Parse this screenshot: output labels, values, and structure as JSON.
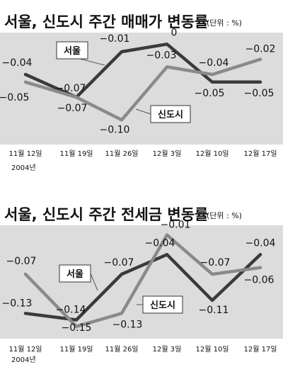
{
  "chart_data": [
    {
      "type": "line",
      "title": "서울, 신도시 주간 매매가 변동률",
      "unit": "(단위 : %)",
      "categories": [
        "11월 12일",
        "11월 19일",
        "11월 26일",
        "12월 3일",
        "12월 10일",
        "12월 17일"
      ],
      "year_note": "2004년",
      "ylim": [
        -0.11,
        0.005
      ],
      "series": [
        {
          "name": "서울",
          "color": "#3a3a3a",
          "values": [
            -0.04,
            -0.07,
            -0.01,
            0.0,
            -0.05,
            -0.05
          ],
          "labels": [
            "−0.04",
            "−0.07",
            "−0.01",
            "0",
            "−0.05",
            "−0.05"
          ]
        },
        {
          "name": "신도시",
          "color": "#8a8a8a",
          "values": [
            -0.05,
            -0.07,
            -0.1,
            -0.03,
            -0.04,
            -0.02
          ],
          "labels": [
            "−0.05",
            "−0.07",
            "−0.10",
            "−0.03",
            "−0.04",
            "−0.02"
          ]
        }
      ]
    },
    {
      "type": "line",
      "title": "서울, 신도시 주간 전세금 변동률",
      "unit": "(단위 : %)",
      "categories": [
        "11월 12일",
        "11월 19일",
        "11월 26일",
        "12월 3일",
        "12월 10일",
        "12월 17일"
      ],
      "year_note": "2004년",
      "ylim": [
        -0.16,
        -0.005
      ],
      "series": [
        {
          "name": "서울",
          "color": "#3a3a3a",
          "values": [
            -0.13,
            -0.14,
            -0.07,
            -0.04,
            -0.11,
            -0.04
          ],
          "labels": [
            "−0.13",
            "−0.14",
            "−0.07",
            "−0.04",
            "−0.11",
            "−0.04"
          ]
        },
        {
          "name": "신도시",
          "color": "#8a8a8a",
          "values": [
            -0.07,
            -0.15,
            -0.13,
            -0.01,
            -0.07,
            -0.06
          ],
          "labels": [
            "−0.07",
            "−0.15",
            "−0.13",
            "−0.01",
            "−0.07",
            "−0.06"
          ]
        }
      ]
    }
  ]
}
